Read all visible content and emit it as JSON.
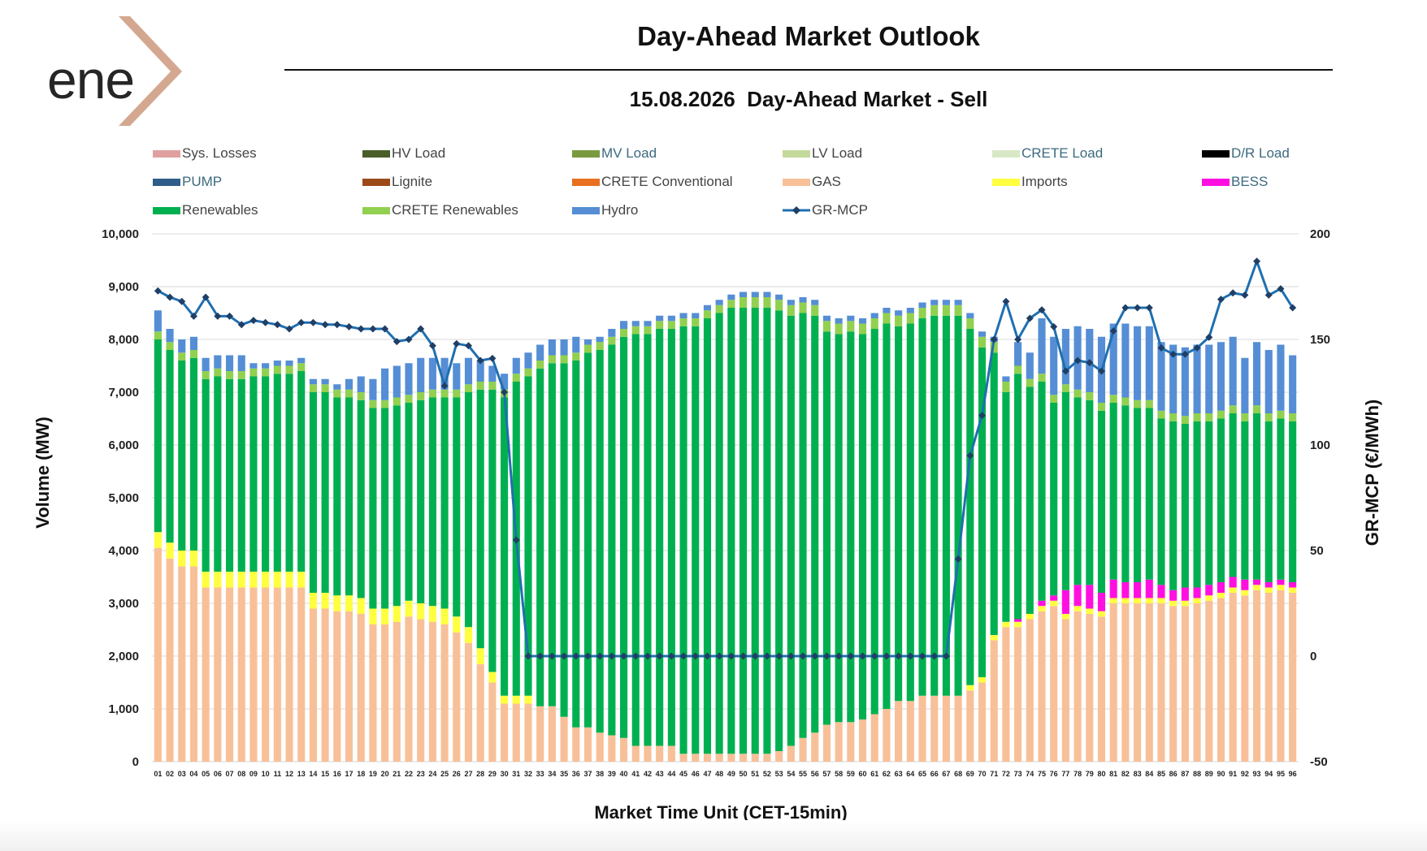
{
  "logo": {
    "text": "ene"
  },
  "header": {
    "title": "Day-Ahead Market Outlook",
    "subtitle": "15.08.2026  Day-Ahead Market - Sell"
  },
  "colors": {
    "sys_losses": "#e0a0a0",
    "hv_load": "#4a5e2a",
    "mv_load": "#7a9a40",
    "lv_load": "#c4d99c",
    "crete_load": "#d8e8c4",
    "dr_load": "#000000",
    "pump": "#2f5d8a",
    "lignite": "#9c4a1a",
    "crete_conventional": "#e87020",
    "gas": "#f8c098",
    "imports": "#ffff40",
    "bess": "#ff10e0",
    "renewables": "#00b050",
    "crete_renewables": "#92d050",
    "hydro": "#558ed5",
    "mcp": "#1f6fb0",
    "logo_chevron": "#d4a890"
  },
  "chart_data": {
    "type": "bar",
    "stacked": true,
    "title": "15.08.2026  Day-Ahead Market - Sell",
    "xlabel": "Market Time Unit (CET-15min)",
    "ylabel": "Volume (MW)",
    "y2label": "GR-MCP (€/MWh)",
    "ylim": [
      0,
      10000
    ],
    "y2lim": [
      -50,
      200
    ],
    "yticks": [
      "0",
      "1,000",
      "2,000",
      "3,000",
      "4,000",
      "5,000",
      "6,000",
      "7,000",
      "8,000",
      "9,000",
      "10,000"
    ],
    "y2ticks": [
      "-50",
      "0",
      "50",
      "100",
      "150",
      "200"
    ],
    "grid": true,
    "legend_position": "top",
    "legend": [
      "Sys. Losses",
      "HV Load",
      "MV Load",
      "LV Load",
      "CRETE Load",
      "D/R Load",
      "PUMP",
      "Lignite",
      "CRETE Conventional",
      "GAS",
      "Imports",
      "BESS",
      "Renewables",
      "CRETE Renewables",
      "Hydro",
      "GR-MCP"
    ],
    "categories": [
      "01",
      "02",
      "03",
      "04",
      "05",
      "06",
      "07",
      "08",
      "09",
      "10",
      "11",
      "12",
      "13",
      "14",
      "15",
      "16",
      "17",
      "18",
      "19",
      "20",
      "21",
      "22",
      "23",
      "24",
      "25",
      "26",
      "27",
      "28",
      "29",
      "30",
      "31",
      "32",
      "33",
      "34",
      "35",
      "36",
      "37",
      "38",
      "39",
      "40",
      "41",
      "42",
      "43",
      "44",
      "45",
      "46",
      "47",
      "48",
      "49",
      "50",
      "51",
      "52",
      "53",
      "54",
      "55",
      "56",
      "57",
      "58",
      "59",
      "60",
      "61",
      "62",
      "63",
      "64",
      "65",
      "66",
      "67",
      "68",
      "69",
      "70",
      "71",
      "72",
      "73",
      "74",
      "75",
      "76",
      "77",
      "78",
      "79",
      "80",
      "81",
      "82",
      "83",
      "84",
      "85",
      "86",
      "87",
      "88",
      "89",
      "90",
      "91",
      "92",
      "93",
      "94",
      "95",
      "96"
    ],
    "series": [
      {
        "name": "GAS",
        "values": [
          4050,
          3850,
          3700,
          3700,
          3300,
          3300,
          3300,
          3300,
          3300,
          3300,
          3300,
          3300,
          3300,
          2900,
          2900,
          2850,
          2850,
          2800,
          2600,
          2600,
          2650,
          2750,
          2700,
          2650,
          2600,
          2450,
          2250,
          1850,
          1500,
          1100,
          1100,
          1100,
          1050,
          1050,
          850,
          650,
          650,
          550,
          500,
          450,
          300,
          300,
          300,
          300,
          150,
          150,
          150,
          150,
          150,
          150,
          150,
          150,
          200,
          300,
          450,
          550,
          700,
          750,
          750,
          800,
          900,
          1000,
          1150,
          1150,
          1250,
          1250,
          1250,
          1250,
          1350,
          1500,
          2300,
          2550,
          2550,
          2700,
          2850,
          2950,
          2700,
          2850,
          2800,
          2750,
          3000,
          3000,
          3000,
          3000,
          3000,
          2950,
          2950,
          3000,
          3050,
          3100,
          3200,
          3150,
          3250,
          3200,
          3250,
          3200
        ]
      },
      {
        "name": "Imports",
        "values": [
          300,
          300,
          300,
          300,
          300,
          300,
          300,
          300,
          300,
          300,
          300,
          300,
          300,
          300,
          300,
          300,
          300,
          300,
          300,
          300,
          300,
          300,
          300,
          300,
          300,
          300,
          300,
          300,
          200,
          150,
          150,
          150,
          0,
          0,
          0,
          0,
          0,
          0,
          0,
          0,
          0,
          0,
          0,
          0,
          0,
          0,
          0,
          0,
          0,
          0,
          0,
          0,
          0,
          0,
          0,
          0,
          0,
          0,
          0,
          0,
          0,
          0,
          0,
          0,
          0,
          0,
          0,
          0,
          100,
          100,
          100,
          100,
          100,
          100,
          100,
          100,
          100,
          100,
          100,
          100,
          100,
          100,
          100,
          100,
          100,
          100,
          100,
          100,
          100,
          100,
          100,
          100,
          100,
          100,
          100,
          100
        ]
      },
      {
        "name": "BESS",
        "values": [
          0,
          0,
          0,
          0,
          0,
          0,
          0,
          0,
          0,
          0,
          0,
          0,
          0,
          0,
          0,
          0,
          0,
          0,
          0,
          0,
          0,
          0,
          0,
          0,
          0,
          0,
          0,
          0,
          0,
          0,
          0,
          0,
          0,
          0,
          0,
          0,
          0,
          0,
          0,
          0,
          0,
          0,
          0,
          0,
          0,
          0,
          0,
          0,
          0,
          0,
          0,
          0,
          0,
          0,
          0,
          0,
          0,
          0,
          0,
          0,
          0,
          0,
          0,
          0,
          0,
          0,
          0,
          0,
          0,
          0,
          0,
          0,
          50,
          0,
          100,
          100,
          450,
          400,
          450,
          350,
          350,
          300,
          300,
          350,
          250,
          200,
          250,
          200,
          200,
          200,
          200,
          200,
          100,
          100,
          100,
          100
        ]
      },
      {
        "name": "Renewables",
        "values": [
          3650,
          3650,
          3600,
          3650,
          3650,
          3700,
          3650,
          3650,
          3700,
          3700,
          3750,
          3750,
          3800,
          3800,
          3800,
          3750,
          3750,
          3750,
          3800,
          3800,
          3800,
          3750,
          3850,
          3950,
          4000,
          4150,
          4450,
          4900,
          5350,
          5650,
          5950,
          6050,
          6400,
          6500,
          6700,
          6950,
          7100,
          7250,
          7400,
          7600,
          7800,
          7800,
          7900,
          7900,
          8100,
          8100,
          8250,
          8350,
          8450,
          8450,
          8450,
          8450,
          8350,
          8150,
          8050,
          7900,
          7450,
          7350,
          7400,
          7300,
          7300,
          7300,
          7100,
          7150,
          7150,
          7200,
          7200,
          7200,
          6750,
          6250,
          5350,
          4350,
          4650,
          4300,
          4150,
          3650,
          3750,
          3550,
          3500,
          3450,
          3350,
          3350,
          3300,
          3250,
          3150,
          3200,
          3100,
          3150,
          3100,
          3100,
          3100,
          3000,
          3150,
          3050,
          3050,
          3050
        ]
      },
      {
        "name": "CRETE Renewables",
        "values": [
          150,
          150,
          150,
          150,
          150,
          150,
          150,
          150,
          150,
          150,
          150,
          150,
          150,
          150,
          150,
          150,
          150,
          150,
          150,
          150,
          150,
          150,
          150,
          150,
          150,
          150,
          150,
          150,
          150,
          150,
          150,
          150,
          150,
          150,
          150,
          150,
          150,
          150,
          150,
          150,
          150,
          150,
          150,
          150,
          150,
          150,
          150,
          150,
          150,
          200,
          200,
          200,
          200,
          200,
          200,
          200,
          200,
          200,
          200,
          200,
          200,
          200,
          200,
          200,
          200,
          200,
          200,
          200,
          200,
          200,
          200,
          200,
          150,
          150,
          150,
          150,
          150,
          150,
          150,
          150,
          150,
          150,
          150,
          150,
          150,
          150,
          150,
          150,
          150,
          150,
          150,
          150,
          150,
          150,
          150,
          150
        ]
      },
      {
        "name": "Hydro",
        "values": [
          400,
          250,
          250,
          250,
          250,
          250,
          300,
          300,
          100,
          100,
          100,
          100,
          100,
          100,
          100,
          100,
          200,
          300,
          400,
          600,
          600,
          600,
          650,
          600,
          600,
          500,
          500,
          400,
          300,
          300,
          300,
          300,
          300,
          300,
          300,
          300,
          100,
          100,
          150,
          150,
          100,
          100,
          100,
          100,
          100,
          100,
          100,
          100,
          100,
          100,
          100,
          100,
          100,
          100,
          100,
          100,
          100,
          100,
          100,
          100,
          100,
          100,
          100,
          100,
          100,
          100,
          100,
          100,
          100,
          100,
          100,
          100,
          450,
          500,
          1050,
          1100,
          1050,
          1200,
          1200,
          1250,
          1350,
          1400,
          1400,
          1400,
          1300,
          1300,
          1300,
          1300,
          1300,
          1300,
          1300,
          1050,
          1200,
          1200,
          1250,
          1100
        ]
      },
      {
        "name": "GR-MCP",
        "values": [
          173,
          170,
          168,
          161,
          170,
          161,
          161,
          157,
          159,
          158,
          157,
          155,
          158,
          158,
          157,
          157,
          156,
          155,
          155,
          155,
          149,
          150,
          155,
          147,
          128,
          148,
          147,
          140,
          141,
          125,
          55,
          0,
          0,
          0,
          0,
          0,
          0,
          0,
          0,
          0,
          0,
          0,
          0,
          0,
          0,
          0,
          0,
          0,
          0,
          0,
          0,
          0,
          0,
          0,
          0,
          0,
          0,
          0,
          0,
          0,
          0,
          0,
          0,
          0,
          0,
          0,
          0,
          46,
          95,
          114,
          150,
          168,
          150,
          160,
          164,
          156,
          135,
          140,
          139,
          135,
          154,
          165,
          165,
          165,
          146,
          143,
          143,
          146,
          151,
          169,
          172,
          171,
          187,
          171,
          174,
          165
        ]
      }
    ]
  }
}
